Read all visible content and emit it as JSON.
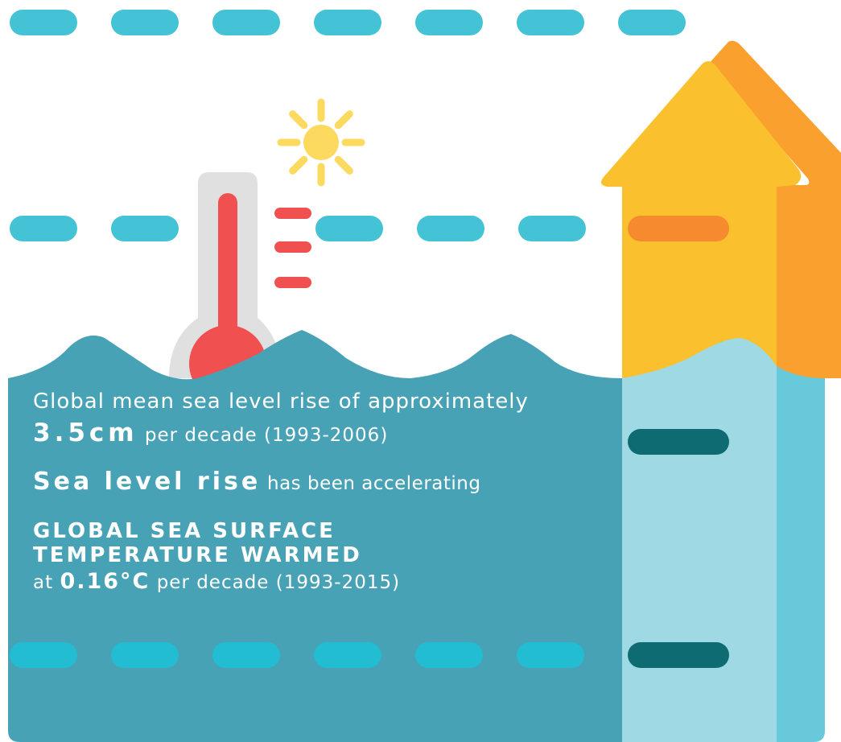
{
  "colors": {
    "dash_top": "#44c2d6",
    "dash_bottom": "#22bcd3",
    "dash_house": "#f58b2e",
    "dash_house_dark": "#0f6b72",
    "sea": "#48a2b6",
    "house_front": "#fbc02d",
    "house_side": "#f9a02e",
    "house_water": "#9fd9e3",
    "house_water_side": "#67c9da",
    "thermometer_tube": "#e0e0e0",
    "mercury": "#f05050",
    "sun": "#fcd95f",
    "text": "#ffffff"
  },
  "icons": [
    "thermometer-icon",
    "sun-icon",
    "house-icon",
    "wave-icon"
  ],
  "info": {
    "line1": "Global mean sea level rise of approximately",
    "rate_value": "3.5cm",
    "rate_suffix": "per decade (1993-2006)",
    "accel_highlight": "Sea level rise",
    "accel_suffix": "has been accelerating",
    "headline_1": "GLOBAL SEA SURFACE",
    "headline_2": "TEMPERATURE WARMED",
    "temp_prefix": "at",
    "temp_value": "0.16°C",
    "temp_suffix": "per decade (1993-2015)"
  }
}
